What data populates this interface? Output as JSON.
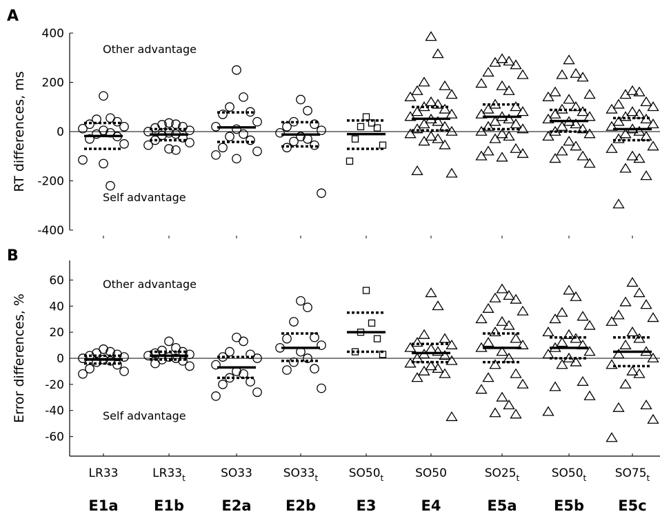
{
  "chart_data": [
    {
      "panel": "A",
      "type": "scatter",
      "ylabel": "RT differences, ms",
      "ylim": [
        -400,
        400
      ],
      "yticks": [
        "400",
        "200",
        "0",
        "-200",
        "-400"
      ],
      "annotations": {
        "top": "Other advantage",
        "bottom": "Self advantage"
      },
      "series": [
        {
          "marker": "circle",
          "mean": -18,
          "q_high": 35,
          "q_low": -70,
          "points": [
            145,
            55,
            50,
            40,
            30,
            20,
            12,
            5,
            -5,
            -10,
            -20,
            -30,
            -50,
            -115,
            -130,
            -220
          ]
        },
        {
          "marker": "circle",
          "mean": -12,
          "q_high": 10,
          "q_low": -35,
          "points": [
            35,
            30,
            28,
            20,
            15,
            5,
            0,
            -5,
            -10,
            -15,
            -25,
            -35,
            -45,
            -55,
            -70,
            -75
          ]
        },
        {
          "marker": "circle",
          "mean": 17,
          "q_high": 78,
          "q_low": -42,
          "points": [
            250,
            140,
            100,
            80,
            70,
            40,
            20,
            10,
            -10,
            -20,
            -35,
            -65,
            -80,
            -95,
            -110
          ]
        },
        {
          "marker": "circle",
          "mean": -12,
          "q_high": 38,
          "q_low": -60,
          "points": [
            130,
            85,
            40,
            30,
            20,
            5,
            -5,
            -20,
            -30,
            -40,
            -55,
            -65,
            -250
          ]
        },
        {
          "marker": "square",
          "mean": -10,
          "q_high": 45,
          "q_low": -70,
          "points": [
            60,
            35,
            20,
            15,
            -30,
            -55,
            -120
          ]
        },
        {
          "marker": "triangle",
          "mean": 52,
          "q_high": 100,
          "q_low": 5,
          "points": [
            385,
            315,
            200,
            185,
            165,
            150,
            140,
            120,
            110,
            100,
            90,
            80,
            70,
            60,
            50,
            40,
            30,
            20,
            10,
            0,
            -10,
            -20,
            -30,
            -40,
            -55,
            -160,
            -170
          ]
        },
        {
          "marker": "triangle",
          "mean": 60,
          "q_high": 110,
          "q_low": 10,
          "points": [
            295,
            285,
            280,
            270,
            240,
            230,
            195,
            185,
            165,
            110,
            100,
            90,
            80,
            70,
            60,
            50,
            40,
            30,
            20,
            10,
            0,
            -10,
            -20,
            -30,
            -70,
            -80,
            -90,
            -100,
            -105
          ]
        },
        {
          "marker": "triangle",
          "mean": 43,
          "q_high": 88,
          "q_low": 0,
          "points": [
            290,
            235,
            230,
            220,
            160,
            150,
            140,
            130,
            100,
            90,
            80,
            70,
            60,
            50,
            40,
            30,
            20,
            10,
            0,
            -10,
            -20,
            -40,
            -60,
            -80,
            -100,
            -110,
            -130
          ]
        },
        {
          "marker": "triangle",
          "mean": 10,
          "q_high": 55,
          "q_low": -35,
          "points": [
            165,
            160,
            150,
            120,
            110,
            100,
            90,
            80,
            70,
            60,
            50,
            40,
            30,
            20,
            10,
            0,
            -10,
            -20,
            -30,
            -60,
            -70,
            -100,
            -110,
            -150,
            -180,
            -295
          ]
        }
      ]
    },
    {
      "panel": "B",
      "type": "scatter",
      "ylabel": "Error differences, %",
      "ylim": [
        -75,
        75
      ],
      "yticks": [
        "60",
        "40",
        "20",
        "0",
        "-20",
        "-40",
        "-60"
      ],
      "annotations": {
        "top": "Other advantage",
        "bottom": "Self advantage"
      },
      "series": [
        {
          "marker": "circle",
          "mean": -1,
          "q_high": 2,
          "q_low": -4,
          "points": [
            7,
            5,
            4,
            3,
            2,
            1,
            0,
            -1,
            -2,
            -3,
            -5,
            -8,
            -10,
            -12
          ]
        },
        {
          "marker": "circle",
          "mean": 2,
          "q_high": 5,
          "q_low": -1,
          "points": [
            13,
            8,
            6,
            5,
            4,
            3,
            2,
            1,
            0,
            -1,
            -2,
            -4,
            -6
          ]
        },
        {
          "marker": "circle",
          "mean": -7,
          "q_high": 1,
          "q_low": -15,
          "points": [
            16,
            13,
            5,
            3,
            1,
            0,
            -5,
            -10,
            -12,
            -15,
            -18,
            -20,
            -26,
            -29
          ]
        },
        {
          "marker": "circle",
          "mean": 8,
          "q_high": 19,
          "q_low": -2,
          "points": [
            44,
            39,
            28,
            16,
            15,
            10,
            8,
            5,
            0,
            -3,
            -8,
            -9,
            -23
          ]
        },
        {
          "marker": "square",
          "mean": 20,
          "q_high": 35,
          "q_low": 5,
          "points": [
            52,
            27,
            20,
            15,
            5,
            3
          ]
        },
        {
          "marker": "triangle",
          "mean": 4,
          "q_high": 11,
          "q_low": -3,
          "points": [
            50,
            40,
            18,
            15,
            12,
            10,
            8,
            7,
            5,
            3,
            2,
            0,
            -2,
            -4,
            -6,
            -8,
            -10,
            -12,
            -15,
            -45
          ]
        },
        {
          "marker": "triangle",
          "mean": 8,
          "q_high": 19,
          "q_low": -3,
          "points": [
            53,
            48,
            46,
            45,
            38,
            36,
            30,
            28,
            25,
            20,
            15,
            12,
            10,
            8,
            5,
            0,
            -5,
            -12,
            -15,
            -20,
            -24,
            -30,
            -36,
            -42,
            -43
          ]
        },
        {
          "marker": "triangle",
          "mean": 8,
          "q_high": 16,
          "q_low": 0,
          "points": [
            52,
            47,
            35,
            32,
            30,
            25,
            20,
            18,
            15,
            12,
            10,
            8,
            5,
            3,
            0,
            -3,
            -5,
            -18,
            -22,
            -29,
            -41
          ]
        },
        {
          "marker": "triangle",
          "mean": 5,
          "q_high": 16,
          "q_low": -6,
          "points": [
            58,
            50,
            43,
            41,
            33,
            31,
            28,
            20,
            15,
            10,
            5,
            3,
            0,
            -5,
            -10,
            -12,
            -20,
            -36,
            -38,
            -47,
            -61
          ]
        }
      ]
    }
  ],
  "categories": [
    {
      "label": "LR33",
      "sub": "",
      "exp": "E1a"
    },
    {
      "label": "LR33",
      "sub": "t",
      "exp": "E1b"
    },
    {
      "label": "SO33",
      "sub": "",
      "exp": "E2a"
    },
    {
      "label": "SO33",
      "sub": "t",
      "exp": "E2b"
    },
    {
      "label": "SO50",
      "sub": "t",
      "exp": "E3"
    },
    {
      "label": "SO50",
      "sub": "",
      "exp": "E4"
    },
    {
      "label": "SO25",
      "sub": "t",
      "exp": "E5a"
    },
    {
      "label": "SO50",
      "sub": "t",
      "exp": "E5b"
    },
    {
      "label": "SO75",
      "sub": "t",
      "exp": "E5c"
    }
  ]
}
